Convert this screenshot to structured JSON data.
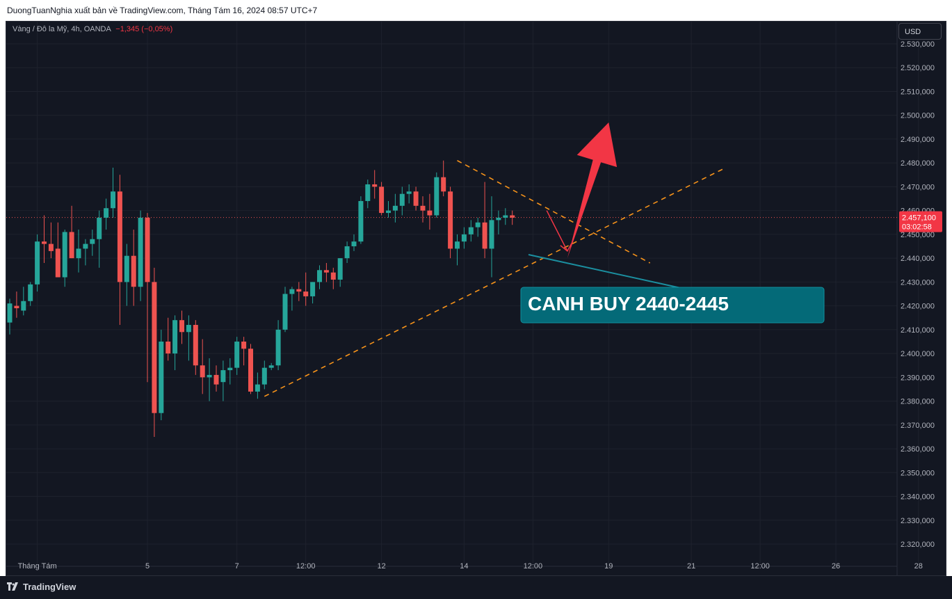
{
  "header": {
    "publisher_line": "DuongTuanNghia xuất bản về TradingView.com, Tháng Tám 16, 2024 08:57 UTC+7"
  },
  "legend": {
    "symbol": "Vàng / Đô la Mỹ, 4h, OANDA",
    "change": "−1,345 (−0,05%)"
  },
  "currency_label": "USD",
  "price_badge": {
    "price": "2.457,100",
    "countdown": "03:02:58"
  },
  "annotation": {
    "text": "CANH BUY 2440-2445"
  },
  "brand": {
    "name": "TradingView"
  },
  "colors": {
    "background": "#131722",
    "up": "#26a69a",
    "down": "#ef5350",
    "trendline": "#f7931a",
    "callout": "#046a78",
    "arrow": "#f23645"
  },
  "chart_data": {
    "type": "candlestick",
    "timeframe": "4h",
    "ylim": [
      2313,
      2537
    ],
    "y_ticks": [
      {
        "v": 2530,
        "label": "2.530,000"
      },
      {
        "v": 2520,
        "label": "2.520,000"
      },
      {
        "v": 2510,
        "label": "2.510,000"
      },
      {
        "v": 2500,
        "label": "2.500,000"
      },
      {
        "v": 2490,
        "label": "2.490,000"
      },
      {
        "v": 2480,
        "label": "2.480,000"
      },
      {
        "v": 2470,
        "label": "2.470,000"
      },
      {
        "v": 2460,
        "label": "2.460,000"
      },
      {
        "v": 2450,
        "label": "2.450,000"
      },
      {
        "v": 2440,
        "label": "2.440,000"
      },
      {
        "v": 2430,
        "label": "2.430,000"
      },
      {
        "v": 2420,
        "label": "2.420,000"
      },
      {
        "v": 2410,
        "label": "2.410,000"
      },
      {
        "v": 2400,
        "label": "2.400,000"
      },
      {
        "v": 2390,
        "label": "2.390,000"
      },
      {
        "v": 2380,
        "label": "2.380,000"
      },
      {
        "v": 2370,
        "label": "2.370,000"
      },
      {
        "v": 2360,
        "label": "2.360,000"
      },
      {
        "v": 2350,
        "label": "2.350,000"
      },
      {
        "v": 2340,
        "label": "2.340,000"
      },
      {
        "v": 2330,
        "label": "2.330,000"
      },
      {
        "v": 2320,
        "label": "2.320,000"
      }
    ],
    "x_ticks": [
      {
        "i": 4,
        "label": "Tháng Tám"
      },
      {
        "i": 20,
        "label": "5"
      },
      {
        "i": 33,
        "label": "7"
      },
      {
        "i": 43,
        "label": "12:00"
      },
      {
        "i": 54,
        "label": "12"
      },
      {
        "i": 66,
        "label": "14"
      },
      {
        "i": 76,
        "label": "12:00"
      },
      {
        "i": 87,
        "label": "19"
      },
      {
        "i": 99,
        "label": "21"
      },
      {
        "i": 109,
        "label": "12:00"
      },
      {
        "i": 120,
        "label": "26"
      },
      {
        "i": 132,
        "label": "28"
      },
      {
        "i": 142,
        "label": "12:00"
      }
    ],
    "candles": [
      [
        2413,
        2423,
        2408,
        2421
      ],
      [
        2420,
        2426,
        2415,
        2419
      ],
      [
        2418,
        2428,
        2416,
        2422
      ],
      [
        2422,
        2430,
        2420,
        2429
      ],
      [
        2429,
        2450,
        2426,
        2447
      ],
      [
        2447,
        2458,
        2438,
        2446
      ],
      [
        2446,
        2455,
        2440,
        2443
      ],
      [
        2444,
        2455,
        2432,
        2432
      ],
      [
        2432,
        2452,
        2428,
        2451
      ],
      [
        2451,
        2462,
        2440,
        2440
      ],
      [
        2440,
        2452,
        2434,
        2444
      ],
      [
        2444,
        2448,
        2437,
        2446
      ],
      [
        2446,
        2452,
        2441,
        2448
      ],
      [
        2448,
        2460,
        2436,
        2457
      ],
      [
        2457,
        2465,
        2452,
        2461
      ],
      [
        2461,
        2478,
        2457,
        2468
      ],
      [
        2468,
        2475,
        2412,
        2430
      ],
      [
        2430,
        2446,
        2420,
        2441
      ],
      [
        2441,
        2452,
        2420,
        2428
      ],
      [
        2428,
        2460,
        2422,
        2457
      ],
      [
        2457,
        2459,
        2388,
        2430
      ],
      [
        2430,
        2436,
        2365,
        2375
      ],
      [
        2375,
        2410,
        2372,
        2405
      ],
      [
        2405,
        2415,
        2397,
        2400
      ],
      [
        2400,
        2416,
        2393,
        2414
      ],
      [
        2414,
        2418,
        2404,
        2409
      ],
      [
        2409,
        2416,
        2397,
        2412
      ],
      [
        2412,
        2414,
        2391,
        2395
      ],
      [
        2395,
        2406,
        2383,
        2390
      ],
      [
        2390,
        2398,
        2380,
        2391
      ],
      [
        2391,
        2395,
        2384,
        2387
      ],
      [
        2388,
        2397,
        2380,
        2393
      ],
      [
        2393,
        2398,
        2387,
        2394
      ],
      [
        2394,
        2407,
        2391,
        2405
      ],
      [
        2405,
        2407,
        2395,
        2402
      ],
      [
        2402,
        2404,
        2383,
        2384
      ],
      [
        2384,
        2392,
        2381,
        2387
      ],
      [
        2387,
        2397,
        2385,
        2394
      ],
      [
        2394,
        2396,
        2393,
        2395
      ],
      [
        2395,
        2414,
        2393,
        2410
      ],
      [
        2410,
        2428,
        2409,
        2425
      ],
      [
        2425,
        2428,
        2418,
        2427
      ],
      [
        2427,
        2430,
        2422,
        2426
      ],
      [
        2426,
        2434,
        2420,
        2424
      ],
      [
        2424,
        2430,
        2421,
        2430
      ],
      [
        2430,
        2437,
        2427,
        2435
      ],
      [
        2435,
        2438,
        2430,
        2434
      ],
      [
        2434,
        2436,
        2427,
        2431
      ],
      [
        2431,
        2440,
        2428,
        2440
      ],
      [
        2440,
        2447,
        2438,
        2445
      ],
      [
        2445,
        2450,
        2443,
        2447
      ],
      [
        2447,
        2466,
        2446,
        2464
      ],
      [
        2464,
        2473,
        2461,
        2471
      ],
      [
        2471,
        2477,
        2465,
        2470
      ],
      [
        2470,
        2472,
        2458,
        2459
      ],
      [
        2459,
        2464,
        2457,
        2460
      ],
      [
        2460,
        2467,
        2455,
        2462
      ],
      [
        2462,
        2470,
        2458,
        2467
      ],
      [
        2467,
        2471,
        2463,
        2468
      ],
      [
        2468,
        2470,
        2460,
        2462
      ],
      [
        2462,
        2466,
        2455,
        2460
      ],
      [
        2460,
        2467,
        2452,
        2458
      ],
      [
        2458,
        2476,
        2457,
        2474
      ],
      [
        2474,
        2481,
        2466,
        2468
      ],
      [
        2468,
        2470,
        2440,
        2444
      ],
      [
        2444,
        2450,
        2437,
        2447
      ],
      [
        2447,
        2453,
        2444,
        2450
      ],
      [
        2450,
        2456,
        2447,
        2453
      ],
      [
        2453,
        2457,
        2449,
        2455
      ],
      [
        2455,
        2472,
        2440,
        2444
      ],
      [
        2444,
        2466,
        2432,
        2456
      ],
      [
        2456,
        2460,
        2450,
        2457
      ],
      [
        2457,
        2461,
        2454,
        2458
      ],
      [
        2458,
        2460,
        2454,
        2457
      ]
    ],
    "last_price": 2457.1,
    "trendlines": [
      {
        "from": [
          37,
          2382
        ],
        "to": [
          104,
          2478
        ],
        "style": "dashed"
      },
      {
        "from": [
          65,
          2481
        ],
        "to": [
          93,
          2438
        ],
        "style": "dashed"
      }
    ],
    "arrows": [
      {
        "from": [
          78,
          2460
        ],
        "to": [
          81,
          2443
        ]
      },
      {
        "from": [
          81,
          2440
        ],
        "to": [
          87,
          2497
        ]
      }
    ]
  }
}
